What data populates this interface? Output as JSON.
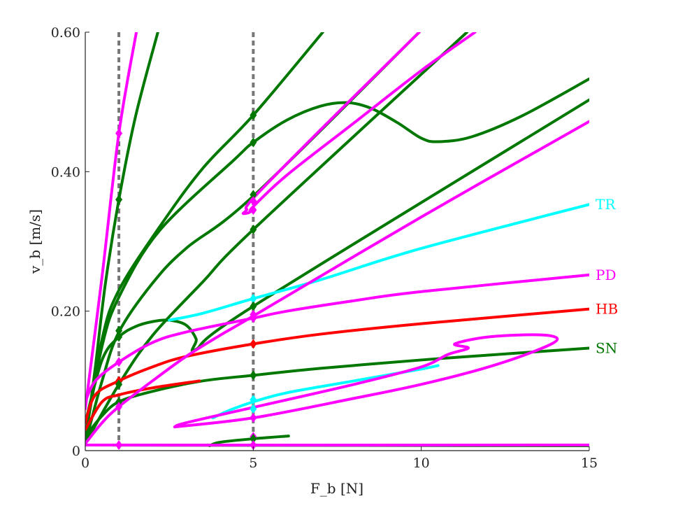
{
  "chart_data": {
    "type": "line",
    "xlabel": "F_b [N]",
    "ylabel": "v_b [m/s]",
    "xlim": [
      0,
      15
    ],
    "ylim": [
      0,
      0.6
    ],
    "xticks": [
      {
        "value": 0,
        "label": "0"
      },
      {
        "value": 5,
        "label": "5"
      },
      {
        "value": 10,
        "label": "10"
      },
      {
        "value": 15,
        "label": "15"
      }
    ],
    "yticks": [
      {
        "value": 0,
        "label": "0"
      },
      {
        "value": 0.2,
        "label": "0.20"
      },
      {
        "value": 0.4,
        "label": "0.40"
      },
      {
        "value": 0.6,
        "label": "0.60"
      }
    ],
    "grid": false,
    "colors": {
      "SN": "#007800",
      "HB": "#ff0000",
      "PD": "#ff00ff",
      "TR": "#00ffff",
      "marker_line": "#777777"
    },
    "vertical_markers": [
      1,
      5
    ],
    "labels": [
      {
        "text": "TR",
        "series": "TR",
        "y": 0.353
      },
      {
        "text": "PD",
        "series": "PD",
        "y": 0.252
      },
      {
        "text": "HB",
        "series": "HB",
        "y": 0.203
      },
      {
        "text": "SN",
        "series": "SN",
        "y": 0.147
      }
    ],
    "curves": [
      {
        "series": "SN",
        "points": [
          [
            0,
            0.008
          ],
          [
            15,
            0.007
          ]
        ]
      },
      {
        "series": "SN",
        "points": [
          [
            0,
            0.01
          ],
          [
            0.3,
            0.12
          ],
          [
            0.6,
            0.24
          ],
          [
            1,
            0.36
          ],
          [
            1.5,
            0.48
          ],
          [
            2.16,
            0.6
          ]
        ]
      },
      {
        "series": "SN",
        "points": [
          [
            0,
            0.02
          ],
          [
            0.5,
            0.16
          ],
          [
            1,
            0.23
          ],
          [
            2.2,
            0.32
          ],
          [
            3.5,
            0.405
          ],
          [
            5,
            0.481
          ],
          [
            7.07,
            0.6
          ]
        ]
      },
      {
        "series": "SN",
        "points": [
          [
            0,
            0.02
          ],
          [
            0.5,
            0.15
          ],
          [
            1,
            0.22
          ],
          [
            2.2,
            0.315
          ],
          [
            4.43,
            0.417
          ],
          [
            5,
            0.442
          ],
          [
            6,
            0.474
          ],
          [
            7,
            0.494
          ],
          [
            7.8,
            0.499
          ],
          [
            8.5,
            0.491
          ],
          [
            9.3,
            0.47
          ],
          [
            10,
            0.448
          ],
          [
            10.5,
            0.443
          ],
          [
            11.5,
            0.45
          ],
          [
            13,
            0.48
          ],
          [
            15,
            0.533
          ]
        ]
      },
      {
        "series": "SN",
        "points": [
          [
            0,
            0.01
          ],
          [
            0.5,
            0.1
          ],
          [
            1,
            0.17
          ],
          [
            2,
            0.24
          ],
          [
            3,
            0.29
          ],
          [
            5,
            0.365
          ],
          [
            9.94,
            0.6
          ]
        ]
      },
      {
        "series": "SN",
        "points": [
          [
            0,
            0.01
          ],
          [
            1,
            0.095
          ],
          [
            2,
            0.165
          ],
          [
            3.5,
            0.242
          ],
          [
            5,
            0.317
          ],
          [
            11.36,
            0.6
          ]
        ]
      },
      {
        "series": "SN",
        "points": [
          [
            0,
            0.04
          ],
          [
            0.5,
            0.13
          ],
          [
            1,
            0.163
          ],
          [
            1.5,
            0.178
          ],
          [
            2,
            0.185
          ],
          [
            2.5,
            0.187
          ],
          [
            3,
            0.18
          ],
          [
            3.3,
            0.16
          ],
          [
            3.29,
            0.145
          ],
          [
            5,
            0.207
          ],
          [
            15,
            0.503
          ]
        ]
      },
      {
        "series": "SN",
        "points": [
          [
            0,
            0.02
          ],
          [
            0.5,
            0.05
          ],
          [
            1,
            0.07
          ],
          [
            2,
            0.085
          ],
          [
            3.5,
            0.1
          ],
          [
            5,
            0.108
          ],
          [
            7,
            0.118
          ],
          [
            10,
            0.13
          ],
          [
            12,
            0.137
          ],
          [
            15,
            0.147
          ]
        ]
      },
      {
        "series": "SN",
        "points": [
          [
            3.7,
            0.007
          ],
          [
            4,
            0.012
          ],
          [
            5,
            0.017
          ],
          [
            6.05,
            0.021
          ]
        ]
      },
      {
        "series": "HB",
        "points": [
          [
            0,
            0.04
          ],
          [
            0.3,
            0.08
          ],
          [
            1,
            0.1
          ],
          [
            2,
            0.12
          ],
          [
            3,
            0.135
          ],
          [
            5,
            0.153
          ],
          [
            7,
            0.167
          ],
          [
            10,
            0.182
          ],
          [
            15,
            0.203
          ]
        ]
      },
      {
        "series": "HB",
        "points": [
          [
            0,
            0.03
          ],
          [
            0.5,
            0.07
          ],
          [
            1,
            0.08
          ],
          [
            2,
            0.09
          ],
          [
            3.4,
            0.1
          ]
        ]
      },
      {
        "series": "TR",
        "points": [
          [
            2.5,
            0.187
          ],
          [
            3.5,
            0.197
          ],
          [
            5,
            0.218
          ],
          [
            7,
            0.245
          ],
          [
            10,
            0.29
          ],
          [
            15,
            0.353
          ]
        ]
      },
      {
        "series": "TR",
        "points": [
          [
            3.8,
            0.047
          ],
          [
            4.3,
            0.058
          ],
          [
            5,
            0.07
          ],
          [
            6,
            0.083
          ],
          [
            8,
            0.1
          ],
          [
            10,
            0.117
          ],
          [
            10.5,
            0.122
          ]
        ]
      },
      {
        "series": "PD",
        "points": [
          [
            0,
            0.01
          ],
          [
            0.5,
            0.008
          ],
          [
            15,
            0.008
          ]
        ]
      },
      {
        "series": "PD",
        "points": [
          [
            0,
            0.06
          ],
          [
            0.5,
            0.25
          ],
          [
            1,
            0.455
          ],
          [
            1.52,
            0.6
          ]
        ]
      },
      {
        "series": "PD",
        "points": [
          [
            0,
            0.07
          ],
          [
            0.3,
            0.1
          ],
          [
            1,
            0.127
          ],
          [
            2,
            0.155
          ],
          [
            3,
            0.17
          ],
          [
            5,
            0.19
          ],
          [
            6,
            0.2
          ],
          [
            8,
            0.215
          ],
          [
            10,
            0.228
          ],
          [
            15,
            0.252
          ]
        ]
      },
      {
        "series": "PD",
        "points": [
          [
            0,
            0.01
          ],
          [
            0.5,
            0.04
          ],
          [
            1,
            0.063
          ],
          [
            2,
            0.1
          ],
          [
            3,
            0.135
          ],
          [
            4,
            0.165
          ],
          [
            5,
            0.193
          ],
          [
            10,
            0.335
          ],
          [
            15,
            0.472
          ]
        ]
      },
      {
        "series": "PD",
        "points": [
          [
            9.94,
            0.6
          ],
          [
            7,
            0.46
          ],
          [
            5,
            0.362
          ],
          [
            4.8,
            0.345
          ],
          [
            4.7,
            0.34
          ],
          [
            4.9,
            0.342
          ],
          [
            5,
            0.35
          ],
          [
            6,
            0.395
          ],
          [
            8,
            0.47
          ],
          [
            10,
            0.545
          ],
          [
            11.6,
            0.6
          ]
        ]
      },
      {
        "series": "PD",
        "points": [
          [
            2.66,
            0.034
          ],
          [
            5,
            0.047
          ],
          [
            8,
            0.075
          ],
          [
            10,
            0.095
          ],
          [
            12,
            0.12
          ],
          [
            13.5,
            0.145
          ],
          [
            14.05,
            0.16
          ],
          [
            13.5,
            0.166
          ],
          [
            12,
            0.163
          ],
          [
            11,
            0.153
          ],
          [
            11.4,
            0.147
          ],
          [
            10.8,
            0.138
          ],
          [
            10,
            0.12
          ],
          [
            8,
            0.095
          ],
          [
            5,
            0.062
          ],
          [
            3,
            0.04
          ],
          [
            2.66,
            0.034
          ]
        ]
      }
    ],
    "markers": [
      {
        "series": "PD",
        "x": 1,
        "y": 0.455
      },
      {
        "series": "SN",
        "x": 1,
        "y": 0.36
      },
      {
        "series": "SN",
        "x": 1,
        "y": 0.172
      },
      {
        "series": "SN",
        "x": 1,
        "y": 0.163
      },
      {
        "series": "PD",
        "x": 1,
        "y": 0.127
      },
      {
        "series": "HB",
        "x": 1,
        "y": 0.1
      },
      {
        "series": "SN",
        "x": 1,
        "y": 0.095
      },
      {
        "series": "SN",
        "x": 1,
        "y": 0.07
      },
      {
        "series": "PD",
        "x": 1,
        "y": 0.063
      },
      {
        "series": "PD",
        "x": 1,
        "y": 0.008
      },
      {
        "series": "SN",
        "x": 5,
        "y": 0.481
      },
      {
        "series": "SN",
        "x": 5,
        "y": 0.442
      },
      {
        "series": "SN",
        "x": 5,
        "y": 0.367
      },
      {
        "series": "PD",
        "x": 5,
        "y": 0.358
      },
      {
        "series": "PD",
        "x": 5,
        "y": 0.345
      },
      {
        "series": "SN",
        "x": 5,
        "y": 0.317
      },
      {
        "series": "TR",
        "x": 5,
        "y": 0.218
      },
      {
        "series": "SN",
        "x": 5,
        "y": 0.207
      },
      {
        "series": "PD",
        "x": 5,
        "y": 0.195
      },
      {
        "series": "PD",
        "x": 5,
        "y": 0.19
      },
      {
        "series": "HB",
        "x": 5,
        "y": 0.153
      },
      {
        "series": "SN",
        "x": 5,
        "y": 0.108
      },
      {
        "series": "TR",
        "x": 5,
        "y": 0.073
      },
      {
        "series": "TR",
        "x": 5,
        "y": 0.06
      },
      {
        "series": "PD",
        "x": 5,
        "y": 0.047
      },
      {
        "series": "PD",
        "x": 5,
        "y": 0.02
      },
      {
        "series": "SN",
        "x": 5,
        "y": 0.017
      },
      {
        "series": "PD",
        "x": 5,
        "y": 0.008
      }
    ]
  }
}
